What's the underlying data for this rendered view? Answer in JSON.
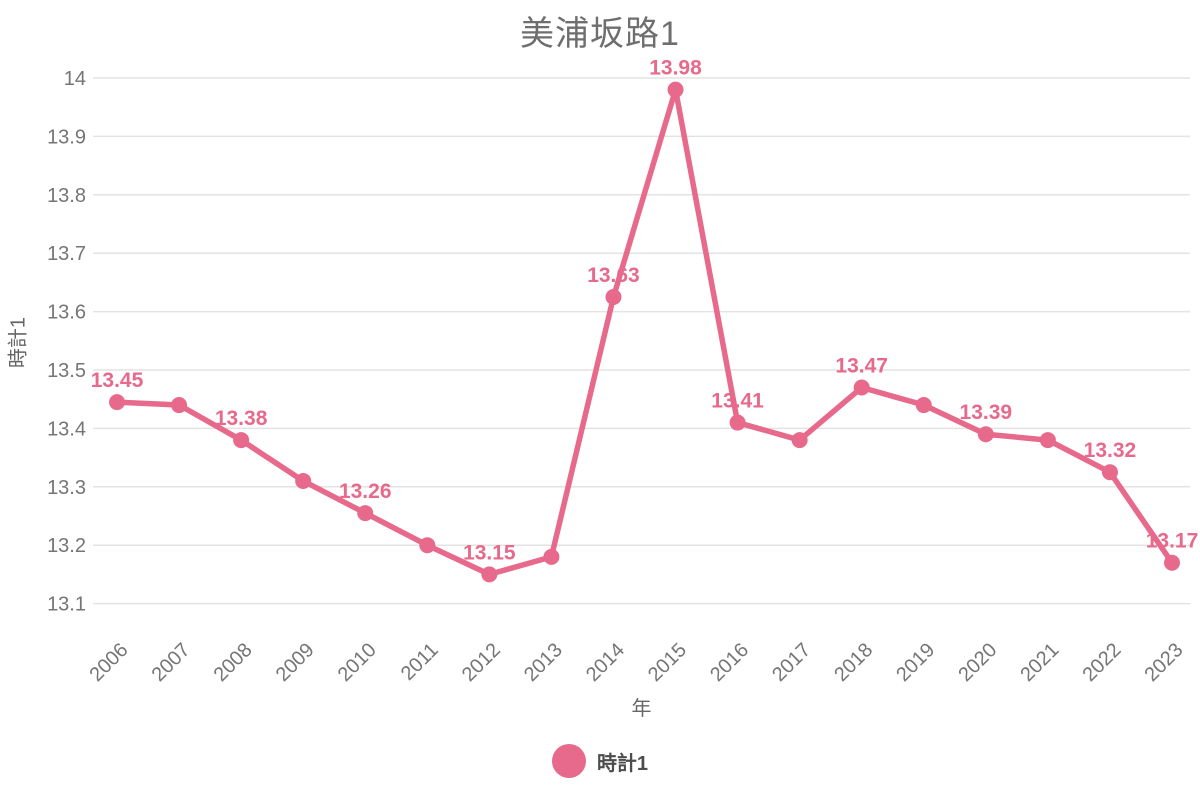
{
  "chart": {
    "title": "美浦坂路1",
    "x_axis_title": "年",
    "y_axis_title": "時計1",
    "legend": {
      "label": "時計1"
    }
  },
  "colors": {
    "series": "#e7698b",
    "title_text": "#6e6e6e",
    "axis_title_text": "#666666",
    "tick_text": "#757575",
    "grid": "#e3e3e3",
    "legend_text": "#4d4d4d",
    "background": "#ffffff"
  },
  "chart_data": {
    "type": "line",
    "title": "美浦坂路1",
    "xlabel": "年",
    "ylabel": "時計1",
    "categories": [
      "2006",
      "2007",
      "2008",
      "2009",
      "2010",
      "2011",
      "2012",
      "2013",
      "2014",
      "2015",
      "2016",
      "2017",
      "2018",
      "2019",
      "2020",
      "2021",
      "2022",
      "2023"
    ],
    "series": [
      {
        "name": "時計1",
        "color": "#e7698b",
        "values": [
          13.445,
          13.44,
          13.38,
          13.31,
          13.255,
          13.2,
          13.15,
          13.18,
          13.625,
          13.98,
          13.41,
          13.38,
          13.47,
          13.44,
          13.39,
          13.38,
          13.325,
          13.17
        ],
        "point_labels": [
          "13.45",
          null,
          "13.38",
          null,
          "13.26",
          null,
          "13.15",
          null,
          "13.63",
          "13.98",
          "13.41",
          null,
          "13.47",
          null,
          "13.39",
          null,
          "13.32",
          "13.17"
        ]
      }
    ],
    "ylim": [
      13.1,
      14.0
    ],
    "ytick_labels": [
      "14",
      "13.9",
      "13.8",
      "13.7",
      "13.6",
      "13.5",
      "13.4",
      "13.3",
      "13.2",
      "13.1"
    ],
    "grid": "horizontal-only",
    "x_tick_rotation_deg": -45,
    "legend_position": "bottom"
  }
}
